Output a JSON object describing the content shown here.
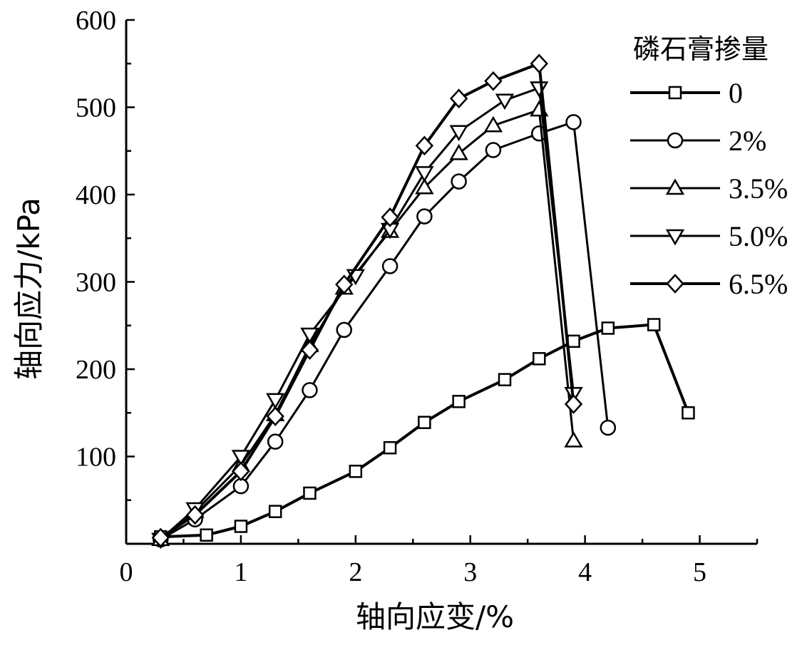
{
  "chart_data": {
    "type": "line",
    "xlabel": "轴向应变/%",
    "ylabel": "轴向应力/kPa",
    "xlim": [
      0,
      5.5
    ],
    "ylim": [
      0,
      600
    ],
    "x_ticks": [
      "0",
      "1",
      "2",
      "3",
      "4",
      "5"
    ],
    "y_ticks": [
      "100",
      "200",
      "300",
      "400",
      "500",
      "600"
    ],
    "legend_title": "磷石膏掺量",
    "legend_position": "top-right",
    "grid": false,
    "series": [
      {
        "name": "0",
        "marker": "square",
        "x": [
          0.3,
          0.7,
          1.0,
          1.3,
          1.6,
          2.0,
          2.3,
          2.6,
          2.9,
          3.3,
          3.6,
          3.9,
          4.2,
          4.6,
          4.9
        ],
        "y": [
          8,
          10,
          20,
          37,
          58,
          83,
          110,
          139,
          163,
          188,
          212,
          232,
          247,
          251,
          150
        ]
      },
      {
        "name": "2%",
        "marker": "circle",
        "x": [
          0.3,
          0.6,
          1.0,
          1.3,
          1.6,
          1.9,
          2.3,
          2.6,
          2.9,
          3.2,
          3.6,
          3.9,
          4.2
        ],
        "y": [
          5,
          28,
          66,
          117,
          176,
          245,
          318,
          375,
          415,
          451,
          470,
          483,
          133
        ]
      },
      {
        "name": "3.5%",
        "marker": "triangle-up",
        "x": [
          0.3,
          0.6,
          1.0,
          1.3,
          1.6,
          1.9,
          2.3,
          2.6,
          2.9,
          3.2,
          3.6,
          3.9
        ],
        "y": [
          5,
          37,
          90,
          148,
          227,
          293,
          358,
          408,
          447,
          479,
          497,
          118
        ]
      },
      {
        "name": "5.0%",
        "marker": "triangle-down",
        "x": [
          0.3,
          0.6,
          1.0,
          1.3,
          1.6,
          2.0,
          2.3,
          2.6,
          2.9,
          3.3,
          3.6,
          3.9
        ],
        "y": [
          5,
          40,
          100,
          165,
          240,
          307,
          360,
          425,
          472,
          508,
          522,
          172
        ]
      },
      {
        "name": "6.5%",
        "marker": "diamond",
        "x": [
          0.3,
          0.6,
          1.0,
          1.3,
          1.6,
          1.9,
          2.3,
          2.6,
          2.9,
          3.2,
          3.6,
          3.9
        ],
        "y": [
          7,
          33,
          83,
          146,
          222,
          297,
          374,
          456,
          510,
          530,
          550,
          160
        ]
      }
    ]
  }
}
